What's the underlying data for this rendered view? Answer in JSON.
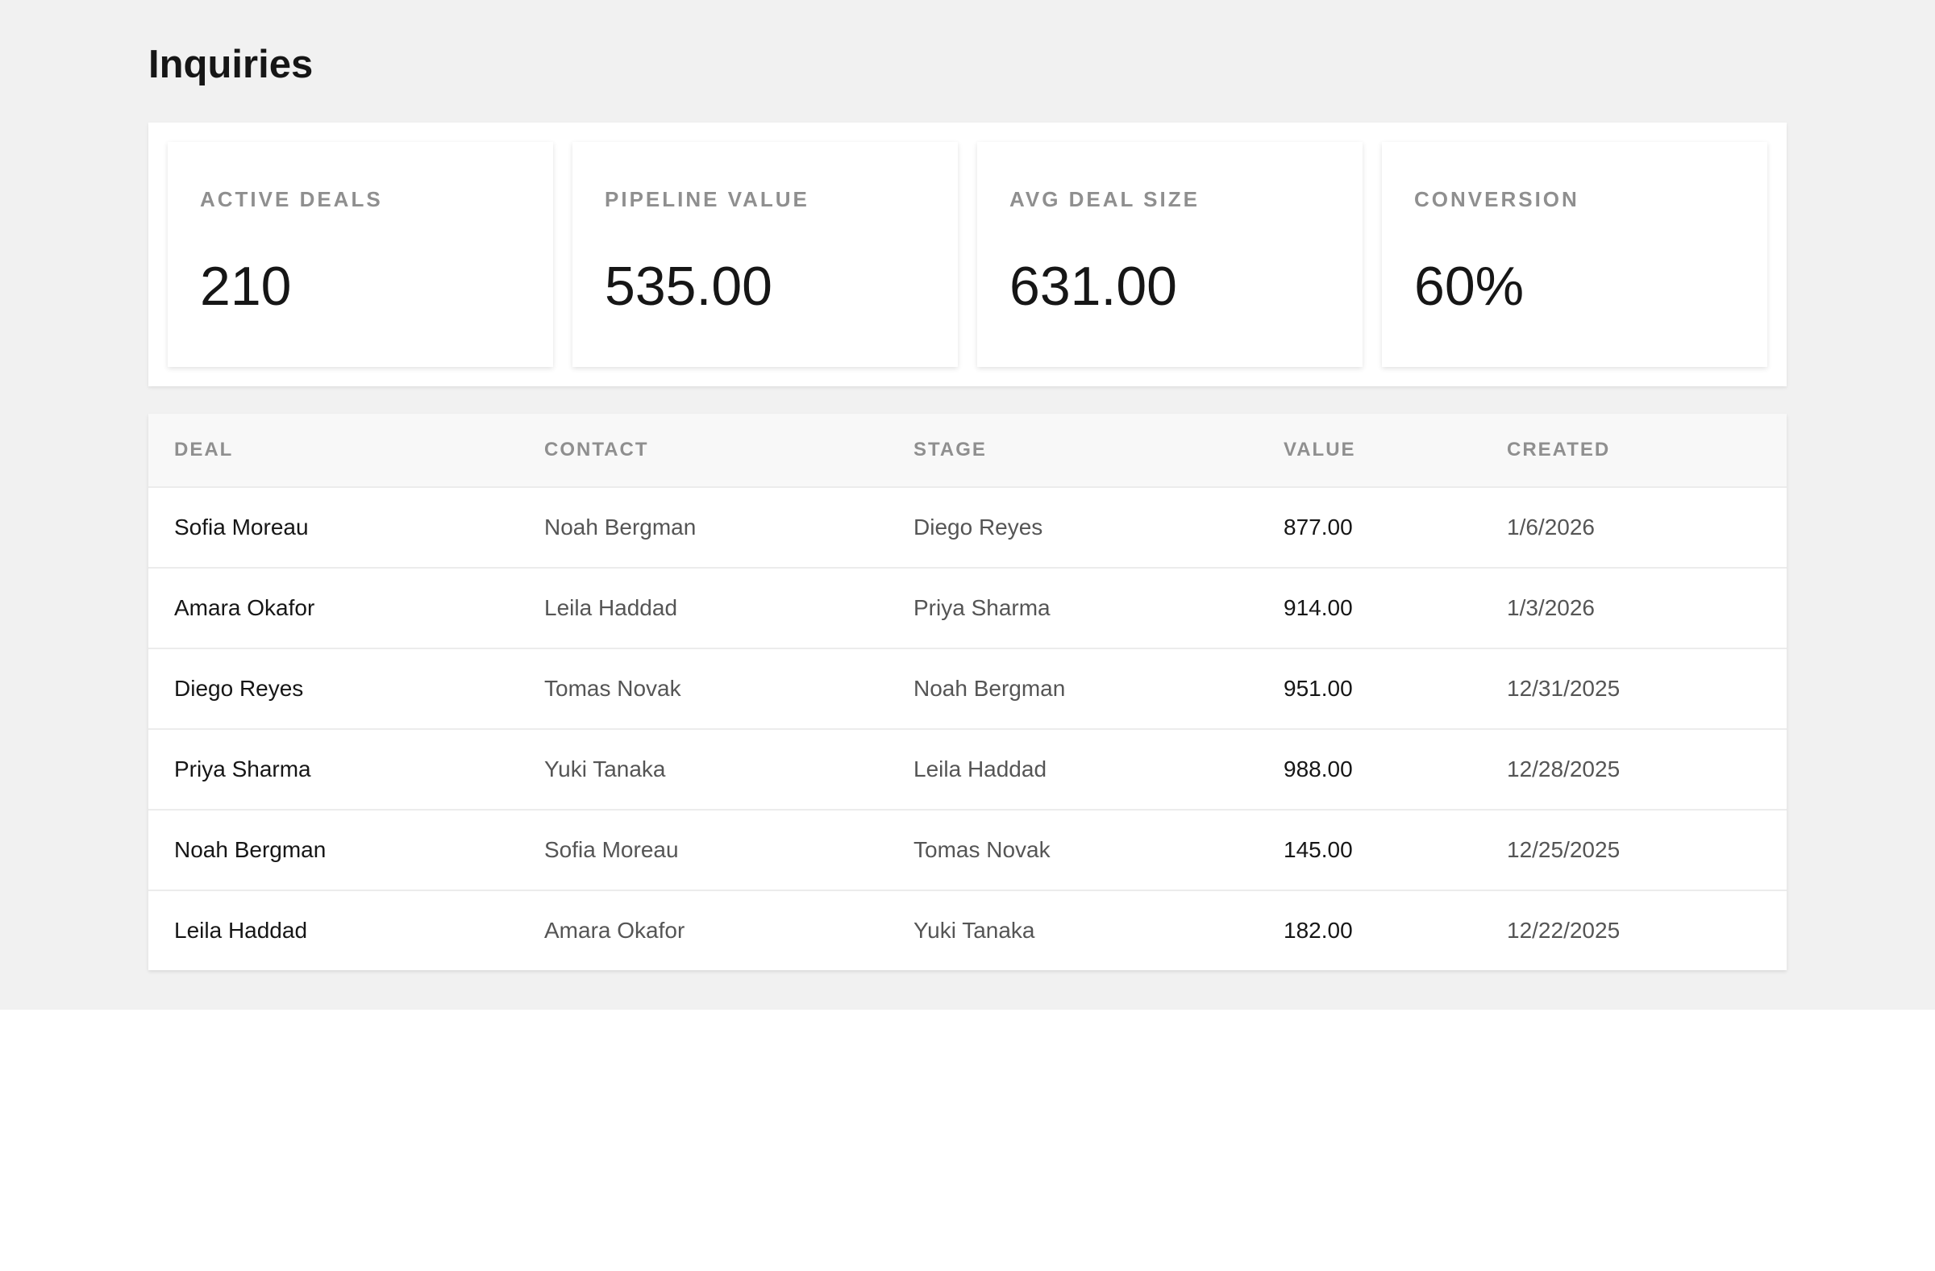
{
  "header": {
    "title": "Inquiries"
  },
  "stats": [
    {
      "label": "ACTIVE DEALS",
      "value": "210"
    },
    {
      "label": "PIPELINE VALUE",
      "value": "535.00"
    },
    {
      "label": "AVG DEAL SIZE",
      "value": "631.00"
    },
    {
      "label": "CONVERSION",
      "value": "60%"
    }
  ],
  "table": {
    "columns": [
      "DEAL",
      "CONTACT",
      "STAGE",
      "VALUE",
      "CREATED"
    ],
    "rows": [
      [
        "Sofia Moreau",
        "Noah Bergman",
        "Diego Reyes",
        "877.00",
        "1/6/2026"
      ],
      [
        "Amara Okafor",
        "Leila Haddad",
        "Priya Sharma",
        "914.00",
        "1/3/2026"
      ],
      [
        "Diego Reyes",
        "Tomas Novak",
        "Noah Bergman",
        "951.00",
        "12/31/2025"
      ],
      [
        "Priya Sharma",
        "Yuki Tanaka",
        "Leila Haddad",
        "988.00",
        "12/28/2025"
      ],
      [
        "Noah Bergman",
        "Sofia Moreau",
        "Tomas Novak",
        "145.00",
        "12/25/2025"
      ],
      [
        "Leila Haddad",
        "Amara Okafor",
        "Yuki Tanaka",
        "182.00",
        "12/22/2025"
      ]
    ]
  }
}
